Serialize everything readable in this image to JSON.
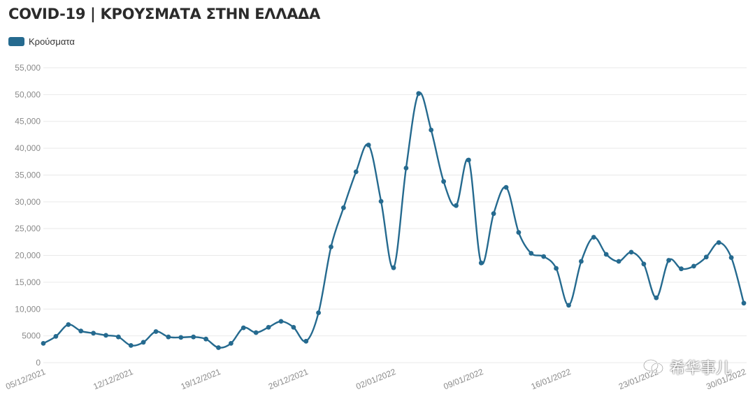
{
  "title": "COVID-19 | ΚΡΟΥΣΜΑΤΑ ΣΤΗΝ ΕΛΛΑΔΑ",
  "watermark": "希华事儿",
  "colors": {
    "series": "#256a8f",
    "grid": "#e9e9e9",
    "tick": "#8a8a8a"
  },
  "chart_data": {
    "type": "line",
    "title": "COVID-19 | ΚΡΟΥΣΜΑΤΑ ΣΤΗΝ ΕΛΛΑΔΑ",
    "xlabel": "",
    "ylabel": "",
    "ylim": [
      0,
      55000
    ],
    "y_ticks": [
      "0",
      "5000",
      "10,000",
      "15,000",
      "20,000",
      "25,000",
      "30,000",
      "35,000",
      "40,000",
      "45,000",
      "50,000",
      "55,000"
    ],
    "x_tick_labels": [
      "05/12/2021",
      "12/12/2021",
      "19/12/2021",
      "26/12/2021",
      "02/01/2022",
      "09/01/2022",
      "16/01/2022",
      "23/01/2022",
      "30/01/2022"
    ],
    "legend_position": "top-left",
    "grid": true,
    "x": [
      "05/12/2021",
      "06/12/2021",
      "07/12/2021",
      "08/12/2021",
      "09/12/2021",
      "10/12/2021",
      "11/12/2021",
      "12/12/2021",
      "13/12/2021",
      "14/12/2021",
      "15/12/2021",
      "16/12/2021",
      "17/12/2021",
      "18/12/2021",
      "19/12/2021",
      "20/12/2021",
      "21/12/2021",
      "22/12/2021",
      "23/12/2021",
      "24/12/2021",
      "25/12/2021",
      "26/12/2021",
      "27/12/2021",
      "28/12/2021",
      "29/12/2021",
      "30/12/2021",
      "31/12/2021",
      "01/01/2022",
      "02/01/2022",
      "03/01/2022",
      "04/01/2022",
      "05/01/2022",
      "06/01/2022",
      "07/01/2022",
      "08/01/2022",
      "09/01/2022",
      "10/01/2022",
      "11/01/2022",
      "12/01/2022",
      "13/01/2022",
      "14/01/2022",
      "15/01/2022",
      "16/01/2022",
      "17/01/2022",
      "18/01/2022",
      "19/01/2022",
      "20/01/2022",
      "21/01/2022",
      "22/01/2022",
      "23/01/2022",
      "24/01/2022",
      "25/01/2022",
      "26/01/2022",
      "27/01/2022",
      "28/01/2022",
      "29/01/2022",
      "30/01/2022"
    ],
    "series": [
      {
        "name": "Κρούσματα",
        "values": [
          3600,
          4900,
          7100,
          5900,
          5500,
          5100,
          4800,
          3200,
          3800,
          5800,
          4800,
          4700,
          4800,
          4400,
          2800,
          3600,
          6500,
          5600,
          6600,
          7700,
          6600,
          4000,
          9300,
          21600,
          28900,
          35600,
          40600,
          30100,
          17700,
          36300,
          50200,
          43400,
          33800,
          29300,
          37800,
          18600,
          27800,
          32700,
          24300,
          20400,
          19800,
          17600,
          10700,
          18900,
          23400,
          20200,
          18900,
          20600,
          18400,
          12100,
          19100,
          17500,
          18000,
          19700,
          22400,
          19600,
          11100
        ]
      }
    ]
  }
}
